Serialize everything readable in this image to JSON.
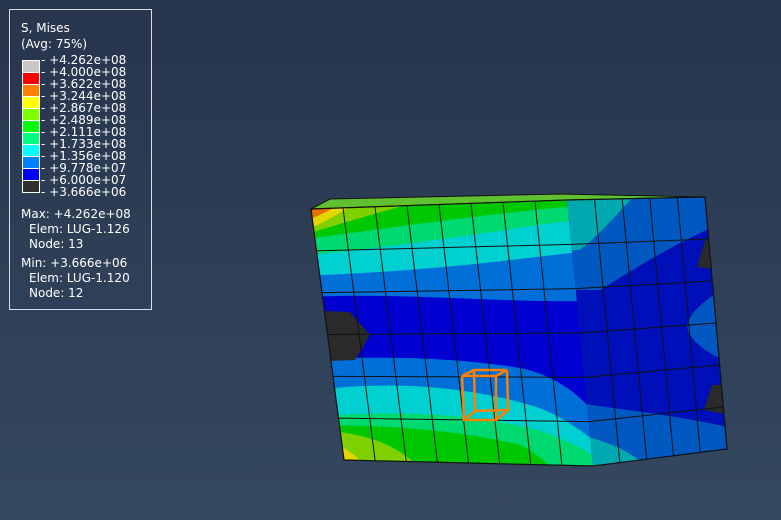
{
  "legend": {
    "title": "S, Mises",
    "avg": "(Avg: 75%)",
    "labels": [
      "+4.262e+08",
      "+4.000e+08",
      "+3.622e+08",
      "+3.244e+08",
      "+2.867e+08",
      "+2.489e+08",
      "+2.111e+08",
      "+1.733e+08",
      "+1.356e+08",
      "+9.778e+07",
      "+6.000e+07",
      "+3.666e+06"
    ],
    "colors": [
      "#c8c8c8",
      "#ff0000",
      "#ff8000",
      "#ffff00",
      "#80ff00",
      "#00ff00",
      "#00ff80",
      "#00ffff",
      "#0080ff",
      "#0000ff",
      "#303030"
    ],
    "max_line": "Max: +4.262e+08",
    "max_elem": "Elem: LUG-1.126",
    "max_node": "Node: 13",
    "min_line": "Min: +3.666e+06",
    "min_elem": "Elem: LUG-1.120",
    "min_node": "Node: 12"
  },
  "highlight_color": "#ff8000"
}
